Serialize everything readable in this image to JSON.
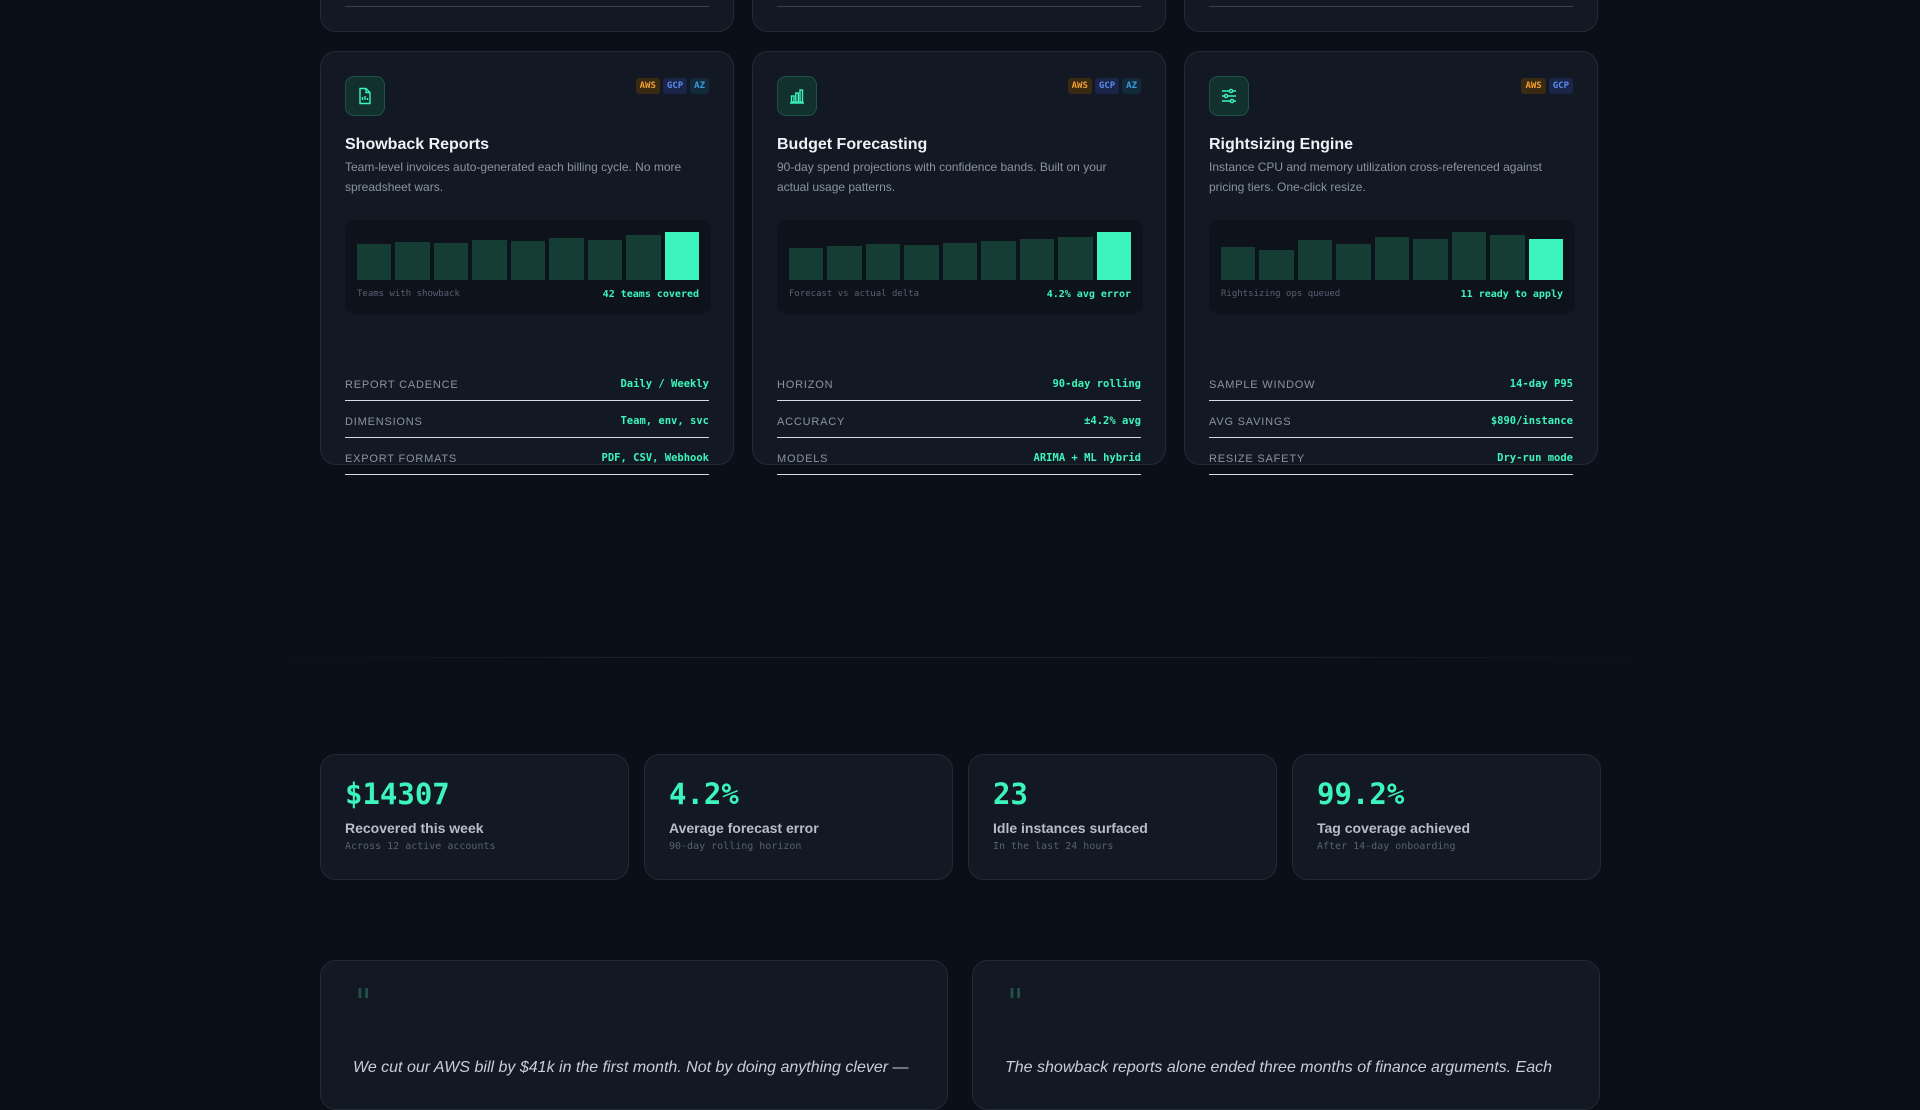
{
  "feature_cards": [
    {
      "title": "Showback Reports",
      "description": "Team-level invoices auto-generated each billing cycle. No more spreadsheet wars.",
      "icon": "document-icon",
      "badges": [
        "AWS",
        "GCP",
        "AZ"
      ],
      "mini_chart": {
        "bars": [
          0.74,
          0.8,
          0.78,
          0.83,
          0.81,
          0.87,
          0.84,
          0.93,
          1.0
        ],
        "caption": "Teams with showback",
        "value": "42 teams covered"
      },
      "specs": [
        {
          "key": "REPORT CADENCE",
          "value": "Daily / Weekly"
        },
        {
          "key": "DIMENSIONS",
          "value": "Team, env, svc"
        },
        {
          "key": "EXPORT FORMATS",
          "value": "PDF, CSV, Webhook"
        }
      ]
    },
    {
      "title": "Budget Forecasting",
      "description": "90-day spend projections with confidence bands. Built on your actual usage patterns.",
      "icon": "bar-chart-icon",
      "badges": [
        "AWS",
        "GCP",
        "AZ"
      ],
      "mini_chart": {
        "bars": [
          0.67,
          0.7,
          0.74,
          0.72,
          0.78,
          0.81,
          0.85,
          0.89,
          1.0
        ],
        "caption": "Forecast vs actual delta",
        "value": "4.2% avg error"
      },
      "specs": [
        {
          "key": "HORIZON",
          "value": "90-day rolling"
        },
        {
          "key": "ACCURACY",
          "value": "±4.2% avg"
        },
        {
          "key": "MODELS",
          "value": "ARIMA + ML hybrid"
        }
      ]
    },
    {
      "title": "Rightsizing Engine",
      "description": "Instance CPU and memory utilization cross-referenced against pricing tiers. One-click resize.",
      "icon": "sliders-icon",
      "badges": [
        "AWS",
        "GCP"
      ],
      "mini_chart": {
        "bars": [
          0.69,
          0.62,
          0.83,
          0.76,
          0.9,
          0.85,
          1.0,
          0.93,
          0.86
        ],
        "caption": "Rightsizing ops queued",
        "value": "11 ready to apply"
      },
      "specs": [
        {
          "key": "SAMPLE WINDOW",
          "value": "14-day P95"
        },
        {
          "key": "AVG SAVINGS",
          "value": "$890/instance"
        },
        {
          "key": "RESIZE SAFETY",
          "value": "Dry-run mode"
        }
      ]
    }
  ],
  "stats": [
    {
      "value": "$14307",
      "label": "Recovered this week",
      "sub": "Across 12 active accounts"
    },
    {
      "value": "4.2%",
      "label": "Average forecast error",
      "sub": "90-day rolling horizon"
    },
    {
      "value": "23",
      "label": "Idle instances surfaced",
      "sub": "In the last 24 hours"
    },
    {
      "value": "99.2%",
      "label": "Tag coverage achieved",
      "sub": "After 14-day onboarding"
    }
  ],
  "testimonials": [
    {
      "mark": "\"",
      "text": "We cut our AWS bill by $41k in the first month. Not by doing anything clever —"
    },
    {
      "mark": "\"",
      "text": "The showback reports alone ended three months of finance arguments. Each"
    }
  ],
  "colors": {
    "accent": "#3df5bc",
    "background": "#0b0f17",
    "card": "#131924"
  }
}
